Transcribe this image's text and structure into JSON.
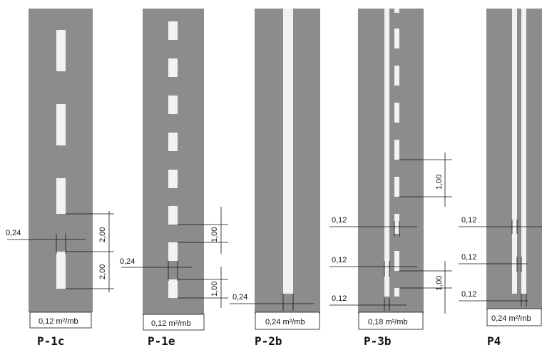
{
  "panels": [
    {
      "code": "P-1c",
      "area": "0,12 m²/mb",
      "annotations": [
        "0,24",
        "2,00",
        "2,00"
      ]
    },
    {
      "code": "P-1e",
      "area": "0,12 m²/mb",
      "annotations": [
        "0,24",
        "1,00",
        "1,00"
      ]
    },
    {
      "code": "P-2b",
      "area": "0,24 m²/mb",
      "annotations": [
        "0,24"
      ]
    },
    {
      "code": "P-3b",
      "area": "0,18 m²/mb",
      "annotations": [
        "0,12",
        "0,12",
        "0,12",
        "1,00",
        "1,00"
      ]
    },
    {
      "code": "P4",
      "area": "0,24 m²/mb",
      "annotations": [
        "0,12",
        "0,12",
        "0,12"
      ]
    }
  ],
  "colors": {
    "road": "#8c8c8c",
    "marking": "#f2f2f2",
    "line": "#111111"
  }
}
